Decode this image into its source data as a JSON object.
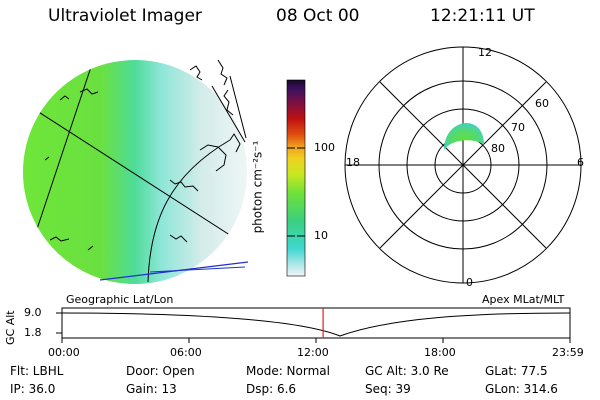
{
  "header": {
    "instrument": "Ultraviolet Imager",
    "date": "08 Oct 00",
    "time": "12:21:11 UT"
  },
  "colorbar": {
    "label": "photon cm⁻²s⁻¹",
    "ticks": [
      "100",
      "10"
    ]
  },
  "polar_plot": {
    "mlt_labels": [
      "12",
      "6",
      "0",
      "18"
    ],
    "lat_labels": [
      "60",
      "70",
      "80"
    ]
  },
  "map_labels": {
    "left": "Geographic Lat/Lon",
    "right": "Apex MLat/MLT"
  },
  "timeline": {
    "axis_label": "GC Alt",
    "tick_values": [
      "9.0",
      "1.8"
    ],
    "time_ticks": [
      "00:00",
      "06:00",
      "12:00",
      "18:00",
      "23:59"
    ],
    "current_time_fraction": 0.514
  },
  "footer": {
    "row1": {
      "flt": "Flt: LBHL",
      "door": "Door: Open",
      "mode": "Mode: Normal",
      "gc_alt": "GC Alt: 3.0 Re",
      "glat": "GLat:  77.5"
    },
    "row2": {
      "ip": "IP: 36.0",
      "gain": "Gain: 13",
      "dsp": "Dsp:    6.6",
      "seq": "Seq: 39",
      "glon": "GLon: 314.6"
    }
  },
  "colors": {
    "green": "#5ee03a",
    "cyan": "#40d8d0",
    "pale": "#d8ecec",
    "blue_line": "#2030d0",
    "red_marker": "#e02020"
  }
}
